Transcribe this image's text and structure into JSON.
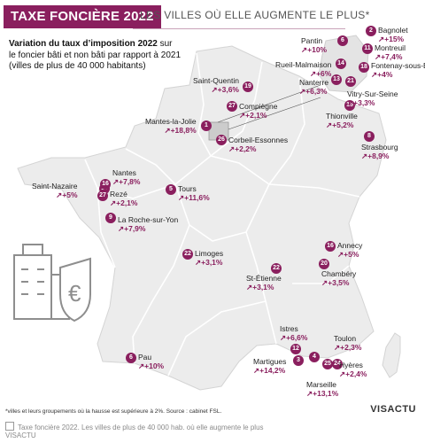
{
  "header": {
    "title": "TAXE FONCIÈRE 2022",
    "subtitle": "LES VILLES OÙ ELLE AUGMENTE LE PLUS*",
    "intro_bold": "Variation du taux d’imposition 2022",
    "intro_rest_1": " sur",
    "intro_line_2": "le foncier bâti et non bâti par rapport à 2021",
    "intro_line_3": "(villes de plus de 40 000 habitants)"
  },
  "cities": [
    {
      "rank": "1",
      "name": "Mantes-la-Jolie",
      "value": "+18,8%"
    },
    {
      "rank": "2",
      "name": "Bagnolet",
      "value": "+15%"
    },
    {
      "rank": "3",
      "name": "Martigues",
      "value": "+14,2%"
    },
    {
      "rank": "4",
      "name": "Marseille",
      "value": "+13,1%"
    },
    {
      "rank": "5",
      "name": "Tours",
      "value": "+11,6%"
    },
    {
      "rank": "6",
      "name": "Pantin",
      "value": "+10%"
    },
    {
      "rank": "6b",
      "name": "Pau",
      "value": "+10%"
    },
    {
      "rank": "8",
      "name": "Strasbourg",
      "value": "+8,9%"
    },
    {
      "rank": "9",
      "name": "La Roche-sur-Yon",
      "value": "+7,9%"
    },
    {
      "rank": "10",
      "name": "Nantes",
      "value": "+7,8%"
    },
    {
      "rank": "11",
      "name": "Montreuil",
      "value": "+7,4%"
    },
    {
      "rank": "12",
      "name": "Istres",
      "value": "+6,6%"
    },
    {
      "rank": "13",
      "name": "Nanterre",
      "value": "+6,3%"
    },
    {
      "rank": "14",
      "name": "Rueil-Malmaison",
      "value": "+6%"
    },
    {
      "rank": "15",
      "name": "Thionville",
      "value": "+5,2%"
    },
    {
      "rank": "16",
      "name": "Saint-Nazaire",
      "value": "+5%"
    },
    {
      "rank": "16b",
      "name": "Annecy",
      "value": "+5%"
    },
    {
      "rank": "18",
      "name": "Fontenay-sous-Bois",
      "value": "+4%"
    },
    {
      "rank": "19",
      "name": "Saint-Quentin",
      "value": "+3,6%"
    },
    {
      "rank": "20",
      "name": "Chambéry",
      "value": "+3,5%"
    },
    {
      "rank": "21",
      "name": "Vitry-Sur-Seine",
      "value": "+3,3%"
    },
    {
      "rank": "22",
      "name": "Limoges",
      "value": "+3,1%"
    },
    {
      "rank": "22b",
      "name": "St-Étienne",
      "value": "+3,1%"
    },
    {
      "rank": "24",
      "name": "Hyères",
      "value": "+2,4%"
    },
    {
      "rank": "25",
      "name": "Toulon",
      "value": "+2,3%"
    },
    {
      "rank": "26",
      "name": "Corbeil-Essonnes",
      "value": "+2,2%"
    },
    {
      "rank": "27",
      "name": "Compiègne",
      "value": "+2,1%"
    },
    {
      "rank": "27b",
      "name": "Rezé",
      "value": "+2,1%"
    }
  ],
  "footnote": "*villes et leurs groupements où la hausse est supérieure à 2%. Source : cabinet FSL.",
  "brand": "VISACTU",
  "caption": "Taxe foncière 2022. Les villes de plus de 40 000 hab. où elle augmente le plus",
  "caption_brand": "VISACTU",
  "colors": {
    "accent": "#8a1f5e",
    "land": "#ececec",
    "border": "#ffffff"
  }
}
